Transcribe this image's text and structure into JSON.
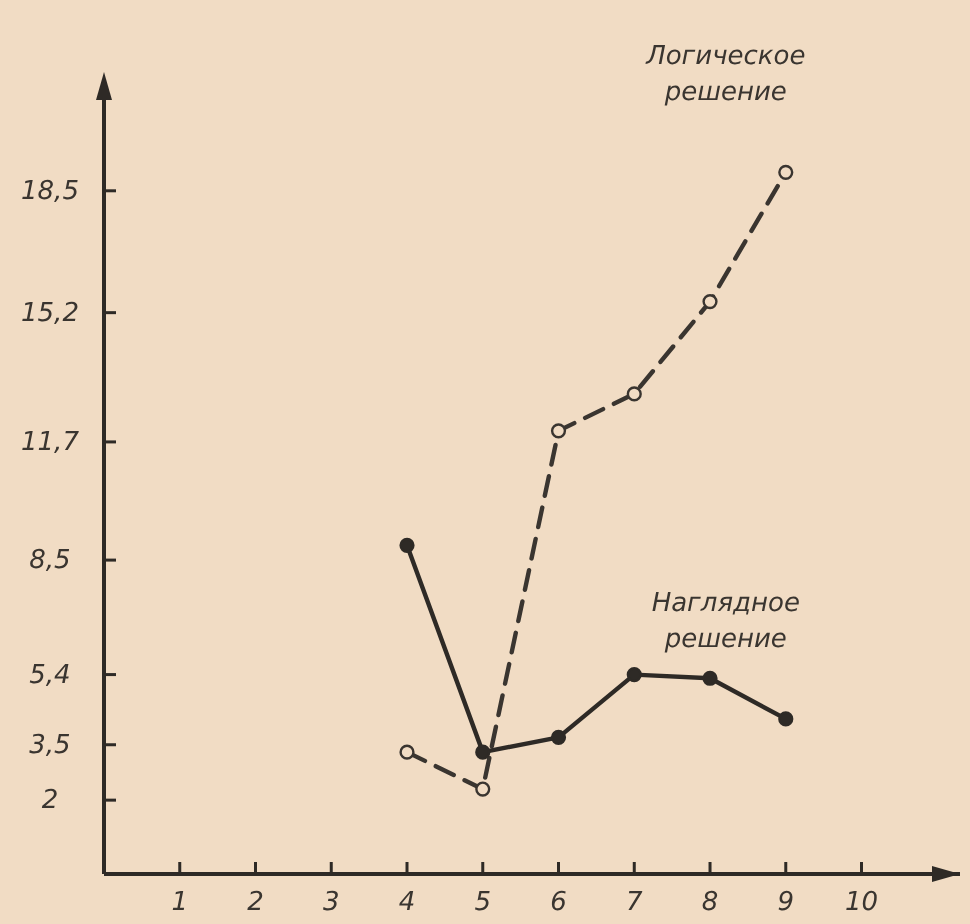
{
  "chart_data": {
    "type": "line",
    "x": [
      4,
      5,
      6,
      7,
      8,
      9
    ],
    "series": [
      {
        "name": "Логическое решение",
        "color": "#3a3530",
        "values": [
          3.3,
          2.3,
          12.0,
          13.0,
          15.5,
          19.0
        ],
        "line_style": "dashed",
        "marker": "circle"
      },
      {
        "name": "Наглядное решение",
        "color": "#2e2a26",
        "values": [
          8.9,
          3.3,
          3.7,
          5.4,
          5.3,
          4.2
        ],
        "line_style": "solid",
        "marker": "circle"
      }
    ],
    "xlim": [
      0,
      11.3
    ],
    "ylim": [
      0,
      21.5
    ],
    "xticks": [
      1,
      2,
      3,
      4,
      5,
      6,
      7,
      8,
      9,
      10
    ],
    "yticks": [
      {
        "value": 2,
        "label": "2"
      },
      {
        "value": 3.5,
        "label": "3,5"
      },
      {
        "value": 5.4,
        "label": "5,4"
      },
      {
        "value": 8.5,
        "label": "8,5"
      },
      {
        "value": 11.7,
        "label": "11,7"
      },
      {
        "value": 15.2,
        "label": "15,2"
      },
      {
        "value": 18.5,
        "label": "18,5"
      }
    ],
    "grid": false
  }
}
